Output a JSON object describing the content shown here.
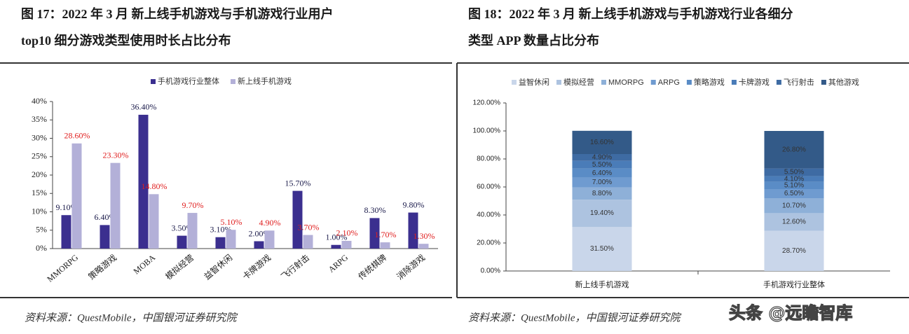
{
  "chart_data": [
    {
      "type": "bar",
      "title": [
        "图 17：2022 年 3 月  新上线手机游戏与手机游戏行业用户",
        "top10 细分游戏类型使用时长占比分布"
      ],
      "source": "资料来源：QuestMobile，中国银河证券研究院",
      "categories": [
        "MMORPG",
        "策略游戏",
        "MOBA",
        "模拟经营",
        "益智休闲",
        "卡牌游戏",
        "飞行射击",
        "ARPG",
        "传统棋牌",
        "消除游戏"
      ],
      "series": [
        {
          "name": "手机游戏行业整体",
          "color": "#3b2f8f",
          "label_color": "#1a1a4a",
          "values": [
            9.1,
            6.4,
            36.4,
            3.5,
            3.1,
            2.0,
            15.7,
            1.0,
            8.3,
            9.8
          ],
          "value_labels": [
            "9.10%",
            "6.40%",
            "36.40%",
            "3.50%",
            "3.10%",
            "2.00%",
            "15.70%",
            "1.00%",
            "8.30%",
            "9.80%"
          ]
        },
        {
          "name": "新上线手机游戏",
          "color": "#b3b0d8",
          "label_color": "#e02020",
          "values": [
            28.6,
            23.3,
            14.8,
            9.7,
            5.1,
            4.9,
            3.7,
            2.1,
            1.7,
            1.3
          ],
          "value_labels": [
            "28.60%",
            "23.30%",
            "14.80%",
            "9.70%",
            "5.10%",
            "4.90%",
            "3.70%",
            "2.10%",
            "1.70%",
            "1.30%"
          ]
        }
      ],
      "ylim": [
        0,
        40
      ],
      "yticks": [
        {
          "value": 0,
          "label": "0%"
        },
        {
          "value": 5,
          "label": "5%"
        },
        {
          "value": 10,
          "label": "10%"
        },
        {
          "value": 15,
          "label": "15%"
        },
        {
          "value": 20,
          "label": "20%"
        },
        {
          "value": 25,
          "label": "25%"
        },
        {
          "value": 30,
          "label": "30%"
        },
        {
          "value": 35,
          "label": "35%"
        },
        {
          "value": 40,
          "label": "40%"
        }
      ],
      "grid": false
    },
    {
      "type": "stacked_bar",
      "title": [
        "图 18：2022 年 3 月  新上线手机游戏与手机游戏行业各细分",
        "类型 APP 数量占比分布"
      ],
      "source": "资料来源：QuestMobile，中国银河证券研究院",
      "categories": [
        "新上线手机游戏",
        "手机游戏行业整体"
      ],
      "series": [
        {
          "name": "益智休闲",
          "color": "#c9d6ea",
          "values": [
            31.5,
            28.7
          ],
          "value_labels": [
            "31.50%",
            "28.70%"
          ]
        },
        {
          "name": "模拟经营",
          "color": "#adc3e0",
          "values": [
            19.4,
            12.6
          ],
          "value_labels": [
            "19.40%",
            "12.60%"
          ]
        },
        {
          "name": "MMORPG",
          "color": "#8eb0d8",
          "values": [
            8.8,
            10.7
          ],
          "value_labels": [
            "8.80%",
            "10.70%"
          ]
        },
        {
          "name": "ARPG",
          "color": "#6f9bd0",
          "values": [
            7.0,
            6.5
          ],
          "value_labels": [
            "7.00%",
            "6.50%"
          ]
        },
        {
          "name": "策略游戏",
          "color": "#5a8cc6",
          "values": [
            6.4,
            5.1
          ],
          "value_labels": [
            "6.40%",
            "5.10%"
          ]
        },
        {
          "name": "卡牌游戏",
          "color": "#4a7cb8",
          "values": [
            5.5,
            4.1
          ],
          "value_labels": [
            "5.50%",
            "4.10%"
          ]
        },
        {
          "name": "飞行射击",
          "color": "#3e6ba3",
          "values": [
            4.9,
            5.5
          ],
          "value_labels": [
            "4.90%",
            "5.50%"
          ]
        },
        {
          "name": "其他游戏",
          "color": "#335a88",
          "values": [
            16.6,
            26.8
          ],
          "value_labels": [
            "16.60%",
            "26.80%"
          ]
        }
      ],
      "ylim": [
        0,
        120
      ],
      "yticks": [
        {
          "value": 0,
          "label": "0.00%"
        },
        {
          "value": 20,
          "label": "20.00%"
        },
        {
          "value": 40,
          "label": "40.00%"
        },
        {
          "value": 60,
          "label": "60.00%"
        },
        {
          "value": 80,
          "label": "80.00%"
        },
        {
          "value": 100,
          "label": "100.00%"
        },
        {
          "value": 120,
          "label": "120.00%"
        }
      ],
      "grid": false
    }
  ],
  "watermark": "头条 @远瞻智库"
}
